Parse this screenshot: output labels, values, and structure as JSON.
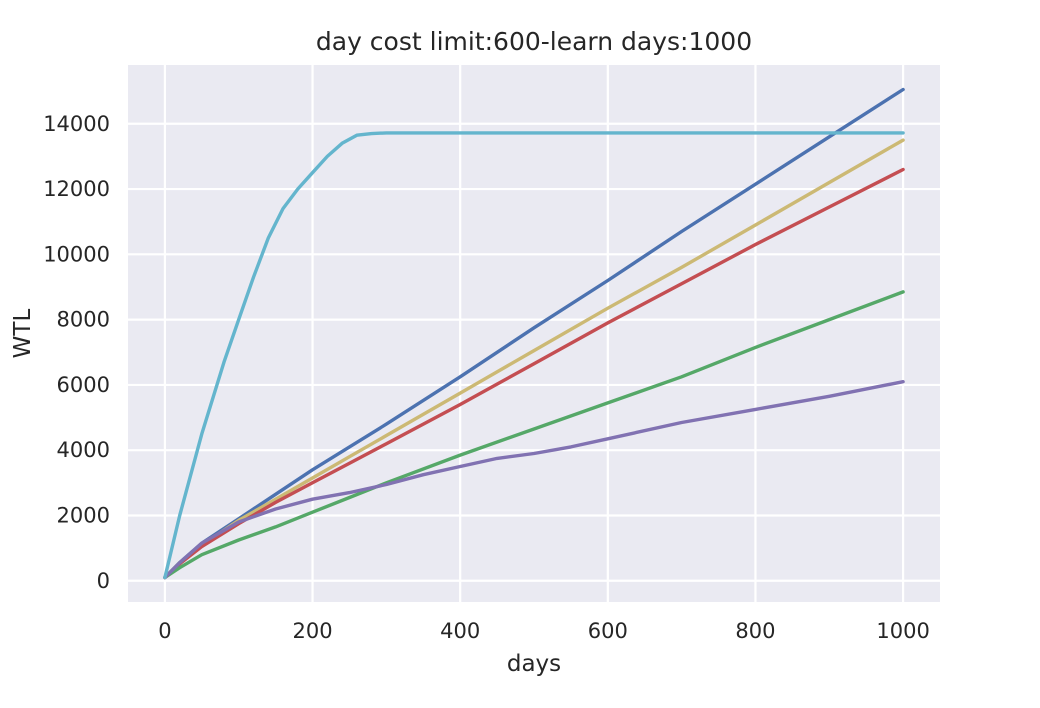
{
  "chart_data": {
    "type": "line",
    "title": "day cost limit:600-learn days:1000",
    "xlabel": "days",
    "ylabel": "WTL",
    "xlim": [
      -50,
      1050
    ],
    "ylim": [
      -650,
      15800
    ],
    "xticks": [
      0,
      200,
      400,
      600,
      800,
      1000
    ],
    "yticks": [
      0,
      2000,
      4000,
      6000,
      8000,
      10000,
      12000,
      14000
    ],
    "xtick_labels": [
      "0",
      "200",
      "400",
      "600",
      "800",
      "1000"
    ],
    "ytick_labels": [
      "0",
      "2000",
      "4000",
      "6000",
      "8000",
      "10000",
      "12000",
      "14000"
    ],
    "grid": true,
    "background": "#eaeaf2",
    "series": [
      {
        "color": "#4c72b0",
        "x": [
          0,
          20,
          50,
          100,
          150,
          200,
          250,
          300,
          400,
          500,
          600,
          700,
          800,
          900,
          1000
        ],
        "y": [
          100,
          560,
          1150,
          1900,
          2650,
          3400,
          4100,
          4800,
          6250,
          7750,
          9200,
          10700,
          12150,
          13600,
          15050
        ]
      },
      {
        "color": "#ccb974",
        "x": [
          0,
          20,
          50,
          100,
          150,
          200,
          250,
          300,
          400,
          500,
          600,
          700,
          800,
          900,
          1000
        ],
        "y": [
          100,
          550,
          1100,
          1850,
          2500,
          3150,
          3800,
          4450,
          5750,
          7050,
          8350,
          9600,
          10900,
          12200,
          13500
        ]
      },
      {
        "color": "#c44e52",
        "x": [
          0,
          20,
          50,
          100,
          150,
          200,
          250,
          300,
          400,
          500,
          600,
          700,
          800,
          900,
          1000
        ],
        "y": [
          100,
          520,
          1050,
          1750,
          2400,
          3000,
          3600,
          4200,
          5400,
          6650,
          7900,
          9100,
          10300,
          11450,
          12600
        ]
      },
      {
        "color": "#55a868",
        "x": [
          0,
          20,
          50,
          100,
          150,
          200,
          250,
          300,
          400,
          500,
          600,
          700,
          800,
          900,
          1000
        ],
        "y": [
          100,
          400,
          800,
          1250,
          1650,
          2100,
          2550,
          3000,
          3850,
          4650,
          5450,
          6250,
          7150,
          8000,
          8850
        ]
      },
      {
        "color": "#8172b2",
        "x": [
          0,
          20,
          50,
          100,
          150,
          200,
          250,
          300,
          350,
          400,
          450,
          500,
          550,
          600,
          700,
          800,
          900,
          1000
        ],
        "y": [
          100,
          550,
          1150,
          1800,
          2200,
          2500,
          2700,
          2950,
          3250,
          3500,
          3750,
          3900,
          4100,
          4350,
          4850,
          5250,
          5650,
          6100
        ]
      },
      {
        "color": "#64b5cd",
        "x": [
          0,
          20,
          50,
          80,
          100,
          120,
          140,
          160,
          180,
          200,
          220,
          240,
          260,
          280,
          300,
          400,
          600,
          800,
          1000
        ],
        "y": [
          100,
          2000,
          4500,
          6700,
          8000,
          9300,
          10500,
          11400,
          12000,
          12500,
          13000,
          13400,
          13650,
          13700,
          13720,
          13720,
          13720,
          13720,
          13720
        ]
      }
    ]
  }
}
